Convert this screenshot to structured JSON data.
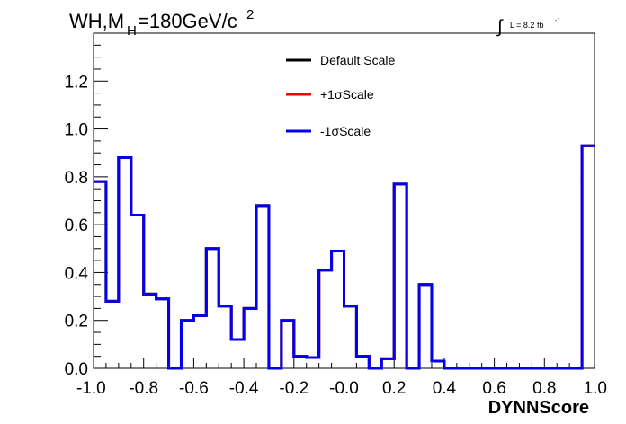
{
  "chart_data": {
    "type": "line",
    "title_main": "WH,M",
    "title_sub": "H",
    "title_rest": "=180GeV/c",
    "title_sup": "2",
    "lumi_int": "∫",
    "lumi_text": "L = 8.2 fb",
    "lumi_sup": "-1",
    "xlabel": "DYNNScore",
    "ylabel": "",
    "xlim": [
      -1.0,
      1.0
    ],
    "ylim": [
      0.0,
      1.4
    ],
    "x_ticks": [
      -1.0,
      -0.8,
      -0.6,
      -0.4,
      -0.2,
      0.0,
      0.2,
      0.4,
      0.6,
      0.8,
      1.0
    ],
    "x_tick_labels": [
      "-1.0",
      "-0.8",
      "-0.6",
      "-0.4",
      "-0.2",
      "-0.0",
      "0.2",
      "0.4",
      "0.6",
      "0.8",
      "1.0"
    ],
    "y_ticks": [
      0.0,
      0.2,
      0.4,
      0.6,
      0.8,
      1.0,
      1.2
    ],
    "y_tick_labels": [
      "0.0",
      "0.2",
      "0.4",
      "0.6",
      "0.8",
      "1.0",
      "1.2"
    ],
    "bin_edges": [
      -1.0,
      -0.95,
      -0.9,
      -0.85,
      -0.8,
      -0.75,
      -0.7,
      -0.65,
      -0.6,
      -0.55,
      -0.5,
      -0.45,
      -0.4,
      -0.35,
      -0.3,
      -0.25,
      -0.2,
      -0.15,
      -0.1,
      -0.05,
      0.0,
      0.05,
      0.1,
      0.15,
      0.2,
      0.25,
      0.3,
      0.35,
      0.4,
      0.45,
      0.5,
      0.55,
      0.6,
      0.65,
      0.7,
      0.75,
      0.8,
      0.85,
      0.9,
      0.95,
      1.0
    ],
    "series": [
      {
        "name": "Default Scale",
        "color": "#000000",
        "values": [
          0.78,
          0.28,
          0.88,
          0.64,
          0.31,
          0.29,
          0.0,
          0.2,
          0.22,
          0.5,
          0.26,
          0.12,
          0.25,
          0.68,
          0.0,
          0.2,
          0.05,
          0.045,
          0.41,
          0.49,
          0.26,
          0.05,
          0.0,
          0.04,
          0.77,
          0.0,
          0.35,
          0.03,
          0.0,
          0.0,
          0.0,
          0.0,
          0.0,
          0.0,
          0.0,
          0.0,
          0.0,
          0.0,
          0.0,
          0.93
        ]
      },
      {
        "name": "+1σScale",
        "color": "#ff0000",
        "values": [
          0.78,
          0.28,
          0.88,
          0.64,
          0.31,
          0.29,
          0.0,
          0.2,
          0.22,
          0.5,
          0.26,
          0.12,
          0.25,
          0.68,
          0.0,
          0.2,
          0.05,
          0.045,
          0.41,
          0.49,
          0.26,
          0.05,
          0.0,
          0.04,
          0.77,
          0.0,
          0.35,
          0.03,
          0.0,
          0.0,
          0.0,
          0.0,
          0.0,
          0.0,
          0.0,
          0.0,
          0.0,
          0.0,
          0.0,
          0.93
        ]
      },
      {
        "name": "-1σScale",
        "color": "#0000ee",
        "values": [
          0.78,
          0.28,
          0.88,
          0.64,
          0.31,
          0.29,
          0.0,
          0.2,
          0.22,
          0.5,
          0.26,
          0.12,
          0.25,
          0.68,
          0.0,
          0.2,
          0.05,
          0.045,
          0.41,
          0.49,
          0.26,
          0.05,
          0.0,
          0.04,
          0.77,
          0.0,
          0.35,
          0.03,
          0.0,
          0.0,
          0.0,
          0.0,
          0.0,
          0.0,
          0.0,
          0.0,
          0.0,
          0.0,
          0.0,
          0.93
        ]
      }
    ],
    "legend": [
      "Default Scale",
      "+1σScale",
      "-1σScale"
    ],
    "legend_position": "top-center",
    "grid": false
  }
}
